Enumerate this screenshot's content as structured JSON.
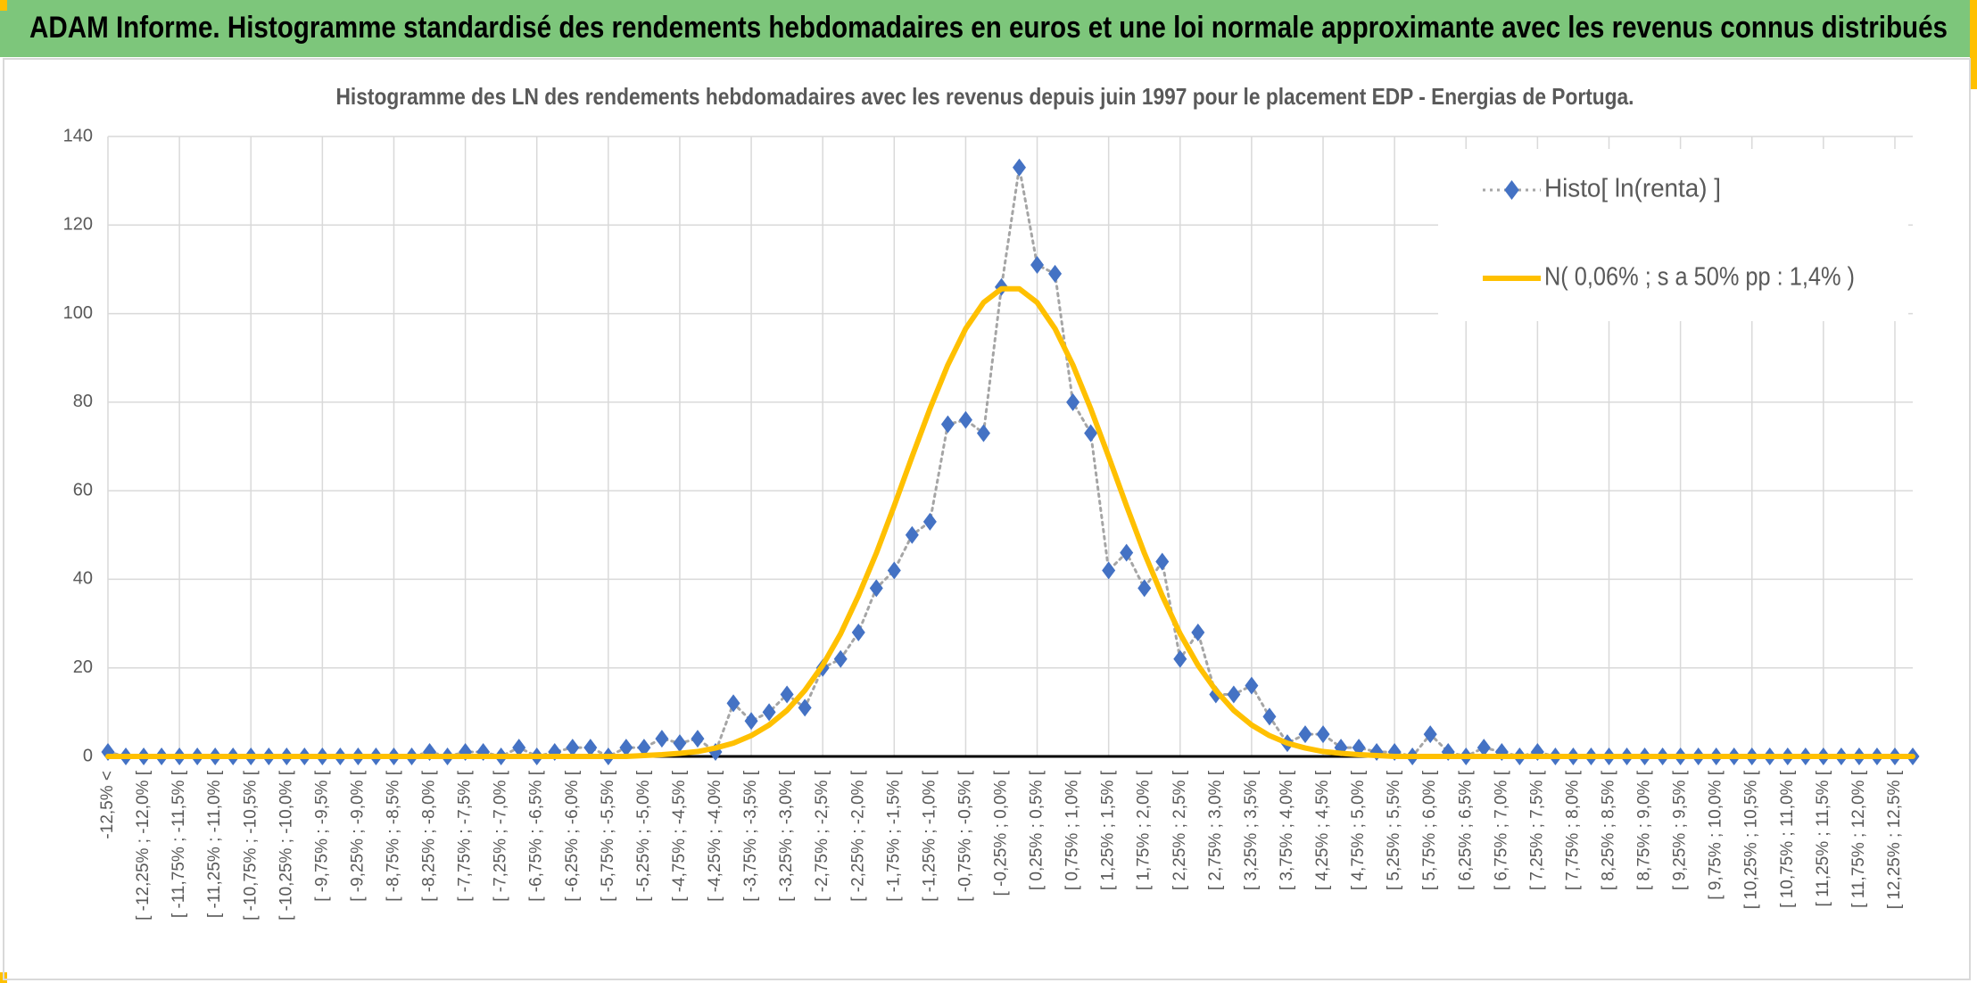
{
  "header": {
    "title": "ADAM Informe. Histogramme standardisé des rendements hebdomadaires en euros et une loi normale approximante avec les revenus connus distribués"
  },
  "chart_data": {
    "type": "line",
    "title": "Histogramme des LN des rendements hebdomadaires avec les revenus depuis juin 1997 pour le placement EDP - Energias de Portuga.",
    "categories": [
      "-12,5% <",
      null,
      "[ -12,25% ; -12,0% [",
      null,
      "[ -11,75% ; -11,5% [",
      null,
      "[ -11,25% ; -11,0% [",
      null,
      "[ -10,75% ; -10,5% [",
      null,
      "[ -10,25% ; -10,0% [",
      null,
      "[ -9,75% ; -9,5% [",
      null,
      "[ -9,25% ; -9,0% [",
      null,
      "[ -8,75% ; -8,5% [",
      null,
      "[ -8,25% ; -8,0% [",
      null,
      "[ -7,75% ; -7,5% [",
      null,
      "[ -7,25% ; -7,0% [",
      null,
      "[ -6,75% ; -6,5% [",
      null,
      "[ -6,25% ; -6,0% [",
      null,
      "[ -5,75% ; -5,5% [",
      null,
      "[ -5,25% ; -5,0% [",
      null,
      "[ -4,75% ; -4,5% [",
      null,
      "[ -4,25% ; -4,0% [",
      null,
      "[ -3,75% ; -3,5% [",
      null,
      "[ -3,25% ; -3,0% [",
      null,
      "[ -2,75% ; -2,5% [",
      null,
      "[ -2,25% ; -2,0% [",
      null,
      "[ -1,75% ; -1,5% [",
      null,
      "[ -1,25% ; -1,0% [",
      null,
      "[ -0,75% ; -0,5% [",
      null,
      "[ -0,25% ; 0,0% [",
      null,
      "[ 0,25% ; 0,5% [",
      null,
      "[ 0,75% ; 1,0% [",
      null,
      "[ 1,25% ; 1,5% [",
      null,
      "[ 1,75% ; 2,0% [",
      null,
      "[ 2,25% ; 2,5% [",
      null,
      "[ 2,75% ; 3,0% [",
      null,
      "[ 3,25% ; 3,5% [",
      null,
      "[ 3,75% ; 4,0% [",
      null,
      "[ 4,25% ; 4,5% [",
      null,
      "[ 4,75% ; 5,0% [",
      null,
      "[ 5,25% ; 5,5% [",
      null,
      "[ 5,75% ; 6,0% [",
      null,
      "[ 6,25% ; 6,5% [",
      null,
      "[ 6,75% ; 7,0% [",
      null,
      "[ 7,25% ; 7,5% [",
      null,
      "[ 7,75% ; 8,0% [",
      null,
      "[ 8,25% ; 8,5% [",
      null,
      "[ 8,75% ; 9,0% [",
      null,
      "[ 9,25% ; 9,5% [",
      null,
      "[ 9,75% ; 10,0% [",
      null,
      "[ 10,25% ; 10,5% [",
      null,
      "[ 10,75% ; 11,0% [",
      null,
      "[ 11,25% ; 11,5% [",
      null,
      "[ 11,75% ; 12,0% [",
      null,
      "[ 12,25% ; 12,5% [",
      null
    ],
    "series": [
      {
        "name": "Histo[ ln(renta) ]",
        "color": "#4472c4",
        "line_color": "#a5a5a5",
        "marker": "diamond",
        "line_style": "dotted",
        "values": [
          1,
          0,
          0,
          0,
          0,
          0,
          0,
          0,
          0,
          0,
          0,
          0,
          0,
          0,
          0,
          0,
          0,
          0,
          1,
          0,
          1,
          1,
          0,
          2,
          0,
          1,
          2,
          2,
          0,
          2,
          2,
          4,
          3,
          4,
          1,
          12,
          8,
          10,
          14,
          11,
          20,
          22,
          28,
          38,
          42,
          50,
          53,
          75,
          76,
          73,
          106,
          133,
          111,
          109,
          80,
          73,
          42,
          46,
          38,
          44,
          22,
          28,
          14,
          14,
          16,
          9,
          3,
          5,
          5,
          2,
          2,
          1,
          1,
          0,
          5,
          1,
          0,
          2,
          1,
          0,
          1,
          0,
          0,
          0,
          0,
          0,
          0,
          0,
          0,
          0,
          0,
          0,
          0,
          0,
          0,
          0,
          0,
          0,
          0,
          0,
          0,
          0
        ]
      },
      {
        "name": "N( 0,06% ; s a 50% pp : 1,4% )",
        "color": "#ffc000",
        "line_color": "#ffc000",
        "marker": "none",
        "line_style": "solid",
        "values": [
          0,
          0,
          0,
          0,
          0,
          0,
          0,
          0,
          0,
          0,
          0,
          0,
          0,
          0,
          0,
          0,
          0,
          0,
          0,
          0,
          0,
          0,
          0,
          0,
          0,
          0,
          0,
          0,
          0,
          0,
          0.2,
          0.4,
          0.7,
          1.1,
          1.9,
          3.0,
          4.7,
          7.1,
          10.4,
          14.9,
          20.6,
          27.7,
          36.3,
          45.9,
          56.6,
          67.7,
          78.5,
          88.4,
          96.6,
          102.5,
          105.6,
          105.6,
          102.5,
          96.6,
          88.4,
          78.5,
          67.7,
          56.6,
          45.9,
          36.3,
          27.7,
          20.6,
          14.9,
          10.4,
          7.1,
          4.7,
          3.0,
          1.9,
          1.1,
          0.7,
          0.4,
          0.2,
          0,
          0,
          0,
          0,
          0,
          0,
          0,
          0,
          0,
          0,
          0,
          0,
          0,
          0,
          0,
          0,
          0,
          0,
          0,
          0,
          0,
          0,
          0,
          0,
          0,
          0,
          0,
          0,
          0,
          0
        ]
      }
    ],
    "ylim": [
      0,
      140
    ],
    "yticks": [
      0,
      20,
      40,
      60,
      80,
      100,
      120,
      140
    ],
    "grid": true,
    "legend": "top-right"
  }
}
